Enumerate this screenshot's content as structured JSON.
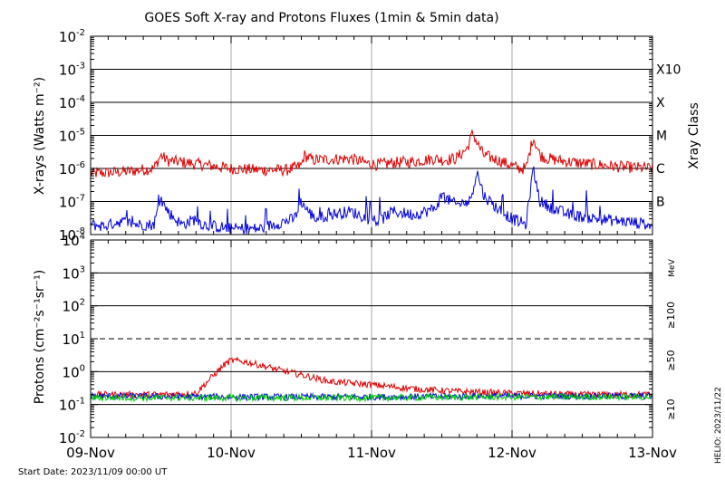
{
  "chart_data": [
    {
      "type": "line",
      "title": "GOES Soft X-ray and Protons Fluxes   (1min & 5min data)",
      "ylabel": "X-rays (Watts m⁻²)",
      "ylabel_right": "Xray Class",
      "yscale": "log",
      "ylim": [
        1e-08,
        0.01
      ],
      "yticks": [
        {
          "value": 0.01,
          "base": "10",
          "exp": "-2"
        },
        {
          "value": 0.001,
          "base": "10",
          "exp": "-3"
        },
        {
          "value": 0.0001,
          "base": "10",
          "exp": "-4"
        },
        {
          "value": 1e-05,
          "base": "10",
          "exp": "-5"
        },
        {
          "value": 1e-06,
          "base": "10",
          "exp": "-6"
        },
        {
          "value": 1e-07,
          "base": "10",
          "exp": "-7"
        },
        {
          "value": 1e-08,
          "base": "10",
          "exp": "-8"
        }
      ],
      "class_labels": [
        {
          "label": "X10",
          "value": 0.001
        },
        {
          "label": "X",
          "value": 0.0001
        },
        {
          "label": "M",
          "value": 1e-05
        },
        {
          "label": "C",
          "value": 1e-06
        },
        {
          "label": "B",
          "value": 1e-07
        }
      ],
      "hgrid": [
        0.001,
        0.0001,
        1e-05,
        1e-06,
        1e-07
      ],
      "series": [
        {
          "color": "#dd0000",
          "x": [
            0,
            0.25,
            0.45,
            0.5,
            0.55,
            0.62,
            0.8,
            1.0,
            1.2,
            1.4,
            1.5,
            1.52,
            1.58,
            1.7,
            1.85,
            1.98,
            2.05,
            2.15,
            2.3,
            2.45,
            2.5,
            2.6,
            2.68,
            2.72,
            2.75,
            2.8,
            2.9,
            3.0,
            3.05,
            3.1,
            3.15,
            3.2,
            3.25,
            3.4,
            3.6,
            3.8,
            4.0
          ],
          "y": [
            7e-07,
            8e-07,
            1e-06,
            2.5e-06,
            1.7e-06,
            1.6e-06,
            1.3e-06,
            1e-06,
            9e-07,
            9e-07,
            1.2e-06,
            2.5e-06,
            1.8e-06,
            1.9e-06,
            2e-06,
            1.4e-06,
            1.3e-06,
            1.5e-06,
            1.6e-06,
            2e-06,
            1.8e-06,
            2e-06,
            4e-06,
            1.2e-05,
            6e-06,
            2.5e-06,
            1.8e-06,
            1.2e-06,
            1e-06,
            1e-06,
            9e-06,
            2.5e-06,
            2e-06,
            1.6e-06,
            1.3e-06,
            1.1e-06,
            1e-06
          ]
        },
        {
          "color": "#0000dd",
          "x": [
            0,
            0.1,
            0.2,
            0.35,
            0.45,
            0.5,
            0.55,
            0.6,
            0.65,
            0.75,
            0.8,
            1.0,
            1.2,
            1.3,
            1.45,
            1.5,
            1.55,
            1.6,
            1.7,
            1.85,
            1.98,
            2.05,
            2.15,
            2.3,
            2.45,
            2.5,
            2.6,
            2.7,
            2.75,
            2.8,
            2.9,
            3.0,
            3.1,
            3.15,
            3.2,
            3.3,
            3.4,
            3.6,
            3.8,
            4.0
          ],
          "y": [
            2e-08,
            1.8e-08,
            2.5e-08,
            2e-08,
            2e-08,
            1.2e-07,
            5e-08,
            3e-08,
            2e-08,
            3e-08,
            2e-08,
            1.5e-08,
            1.5e-08,
            2e-08,
            3e-08,
            1e-07,
            5e-08,
            3e-08,
            4e-08,
            5e-08,
            3e-08,
            2.5e-08,
            5e-08,
            4e-08,
            6e-08,
            1.5e-07,
            8e-08,
            1e-07,
            8e-07,
            1.5e-07,
            6e-08,
            3e-08,
            2e-08,
            1e-06,
            1e-07,
            6e-08,
            4e-08,
            3e-08,
            2.5e-08,
            2e-08
          ]
        }
      ]
    },
    {
      "type": "line",
      "ylabel": "Protons (cm⁻²s⁻¹sr⁻¹)",
      "yscale": "log",
      "ylim": [
        0.01,
        10000
      ],
      "yticks": [
        {
          "value": 10000,
          "base": "10",
          "exp": "4"
        },
        {
          "value": 1000,
          "base": "10",
          "exp": "3"
        },
        {
          "value": 100,
          "base": "10",
          "exp": "2"
        },
        {
          "value": 10,
          "base": "10",
          "exp": "1"
        },
        {
          "value": 1,
          "base": "10",
          "exp": "0"
        },
        {
          "value": 0.1,
          "base": "10",
          "exp": "-1"
        },
        {
          "value": 0.01,
          "base": "10",
          "exp": "-2"
        }
      ],
      "hgrid": [
        1000,
        100,
        1,
        0.1
      ],
      "threshold_line": 10,
      "legend": [
        {
          "label": "MeV",
          "color": "#000000"
        },
        {
          "label": "≥100",
          "color": "#00cc00"
        },
        {
          "label": "≥50",
          "color": "#0000dd"
        },
        {
          "label": "≥10",
          "color": "#dd0000"
        }
      ],
      "series": [
        {
          "name": "≥10",
          "color": "#dd0000",
          "x": [
            0,
            0.5,
            0.75,
            0.85,
            0.95,
            1.0,
            1.1,
            1.2,
            1.35,
            1.5,
            1.7,
            2.0,
            2.3,
            2.6,
            3.0,
            3.5,
            4.0
          ],
          "y": [
            0.2,
            0.2,
            0.22,
            0.6,
            1.6,
            2.2,
            2.0,
            1.6,
            1.1,
            0.8,
            0.5,
            0.4,
            0.3,
            0.25,
            0.22,
            0.2,
            0.2
          ]
        },
        {
          "name": "≥50",
          "color": "#0000dd",
          "x": [
            0,
            1,
            2,
            3,
            4
          ],
          "y": [
            0.18,
            0.17,
            0.17,
            0.18,
            0.18
          ]
        },
        {
          "name": "≥100",
          "color": "#00cc00",
          "x": [
            0,
            1,
            2,
            3,
            4
          ],
          "y": [
            0.16,
            0.16,
            0.16,
            0.17,
            0.17
          ]
        }
      ]
    }
  ],
  "x_tick_labels": [
    "09-Nov",
    "10-Nov",
    "11-Nov",
    "12-Nov",
    "13-Nov"
  ],
  "footer": {
    "start_date": "Start Date: 2023/11/09 00:00 UT",
    "credit": "HELIO: 2023/11/22"
  }
}
